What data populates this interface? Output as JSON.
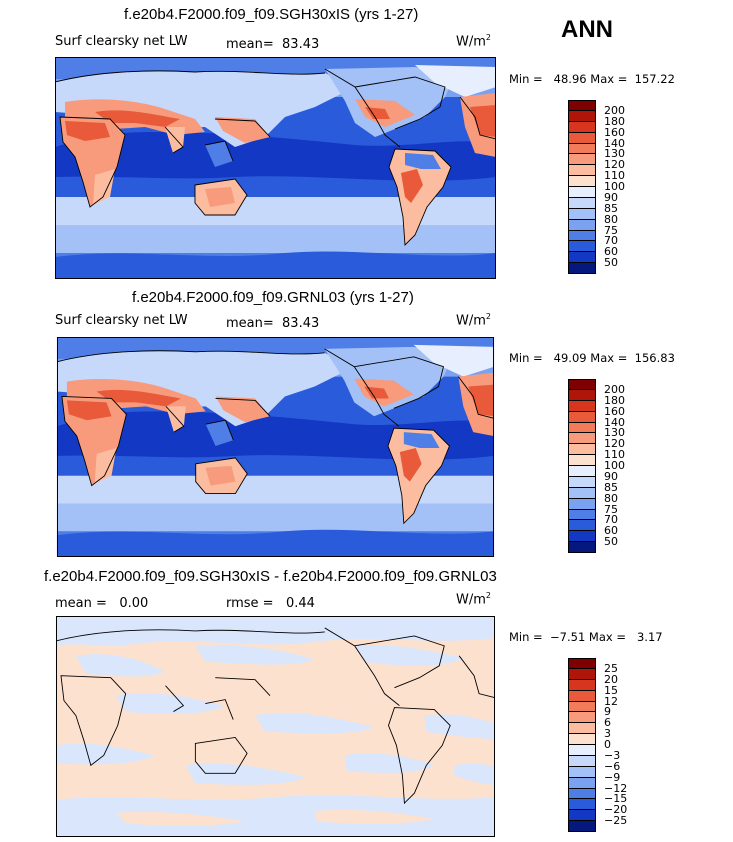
{
  "season": "ANN",
  "panels": [
    {
      "title": "f.e20b4.F2000.f09_f09.SGH30xIS (yrs 1-27)",
      "left_label": "Surf clearsky net LW",
      "mean_label": "mean=",
      "mean_value": "83.43",
      "units": "W/m",
      "units_sup": "2",
      "min_label": "Min =",
      "min_value": "48.96",
      "max_label": "Max =",
      "max_value": "157.22",
      "colorbar": [
        "200",
        "180",
        "160",
        "140",
        "130",
        "120",
        "110",
        "100",
        "90",
        "85",
        "80",
        "75",
        "70",
        "60",
        "50"
      ]
    },
    {
      "title": "f.e20b4.F2000.f09_f09.GRNL03 (yrs 1-27)",
      "left_label": "Surf clearsky net LW",
      "mean_label": "mean=",
      "mean_value": "83.43",
      "units": "W/m",
      "units_sup": "2",
      "min_label": "Min =",
      "min_value": "49.09",
      "max_label": "Max =",
      "max_value": "156.83",
      "colorbar": [
        "200",
        "180",
        "160",
        "140",
        "130",
        "120",
        "110",
        "100",
        "90",
        "85",
        "80",
        "75",
        "70",
        "60",
        "50"
      ]
    },
    {
      "title": "f.e20b4.F2000.f09_f09.SGH30xIS - f.e20b4.F2000.f09_f09.GRNL03",
      "mean_label": "mean =",
      "mean_value": "0.00",
      "rmse_label": "rmse =",
      "rmse_value": "0.44",
      "units": "W/m",
      "units_sup": "2",
      "min_label": "Min =",
      "min_value": "−7.51",
      "max_label": "Max =",
      "max_value": "3.17",
      "colorbar": [
        "25",
        "20",
        "15",
        "12",
        "9",
        "6",
        "3",
        "0",
        "−3",
        "−6",
        "−9",
        "−12",
        "−15",
        "−20",
        "−25"
      ]
    }
  ],
  "colors": {
    "scale16": [
      "#7f0000",
      "#b0150a",
      "#d8351e",
      "#e85a3a",
      "#f27c5a",
      "#f79b7c",
      "#fbbca0",
      "#fde1cf",
      "#e7efff",
      "#c6d9fb",
      "#a3c0f7",
      "#7ba2f0",
      "#4f7fe6",
      "#2a5bdb",
      "#1338c4",
      "#05187e"
    ],
    "ocean_dark": "#1338c4",
    "ocean_mid": "#2a5bdb",
    "ocean_light": "#7ba2f0",
    "ocean_pale": "#c6d9fb",
    "land_hot": "#e85a3a",
    "land_warm": "#f79b7c",
    "diff_pink": "#fde1cf",
    "diff_blue": "#d9e6fb",
    "diff_blue2": "#c6d9fb"
  }
}
